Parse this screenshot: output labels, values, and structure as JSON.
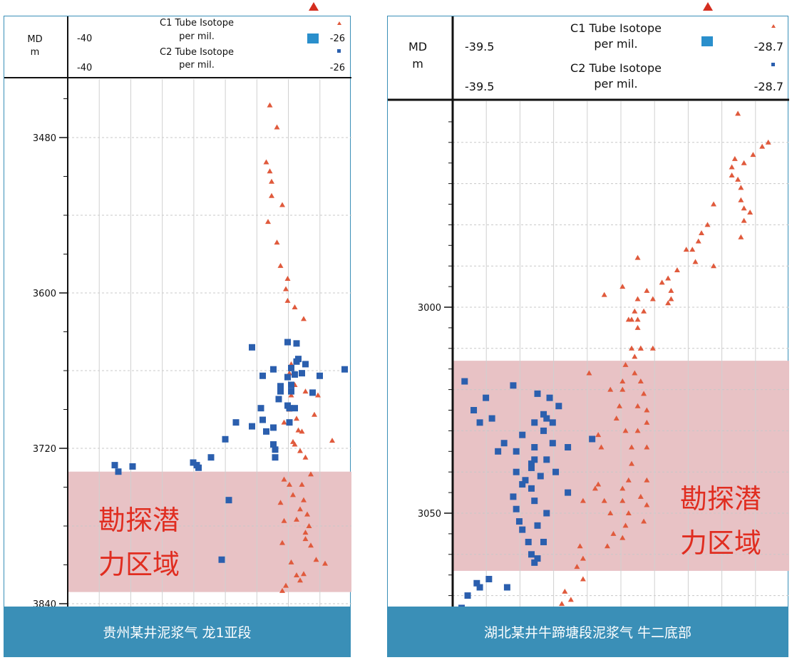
{
  "colors": {
    "c1": "#e05a3c",
    "c2": "#2b5fae",
    "zone": "#e8c2c5",
    "zone_text": "#e02d20",
    "frame": "#3a8fb7",
    "marker": "#d42d1f"
  },
  "icons": {
    "top_marker": "red-triangle-icon"
  },
  "zone_label_line1": "勘探潜",
  "zone_label_line2": "力区域",
  "chart_data": [
    {
      "type": "scatter",
      "footer": "贵州某井泥浆气 龙1亚段",
      "y_axis": {
        "label": "MD",
        "unit": "m",
        "range": [
          3440,
          3844
        ],
        "ticks": [
          "3480",
          "3600",
          "3720",
          "3840"
        ],
        "tick_values": [
          3480,
          3600,
          3720,
          3840
        ]
      },
      "x_axis": {
        "range": [
          -40,
          -26
        ],
        "min_label": "-40",
        "max_label": "-26",
        "unit": "per mil."
      },
      "zone": [
        3738,
        3831
      ],
      "series": [
        {
          "name": "C1 Tube Isotope",
          "marker": "triangle",
          "points": [
            [
              -30.3,
              3455
            ],
            [
              -29.9,
              3472
            ],
            [
              -30.5,
              3499
            ],
            [
              -30.3,
              3506
            ],
            [
              -30.2,
              3514
            ],
            [
              -30.2,
              3525
            ],
            [
              -29.6,
              3532
            ],
            [
              -30.4,
              3545
            ],
            [
              -29.9,
              3561
            ],
            [
              -29.7,
              3579
            ],
            [
              -29.3,
              3589
            ],
            [
              -29.4,
              3597
            ],
            [
              -29.3,
              3606
            ],
            [
              -28.9,
              3611
            ],
            [
              -28.4,
              3620
            ],
            [
              -29.1,
              3655
            ],
            [
              -29.2,
              3662
            ],
            [
              -28.9,
              3671
            ],
            [
              -28.3,
              3676
            ],
            [
              -29.1,
              3679
            ],
            [
              -29.2,
              3690
            ],
            [
              -28.8,
              3697
            ],
            [
              -28.5,
              3707
            ],
            [
              -28.9,
              3717
            ],
            [
              -28.3,
              3727
            ],
            [
              -27.6,
              3679
            ],
            [
              -27.8,
              3694
            ],
            [
              -29.5,
              3700
            ],
            [
              -28.7,
              3706
            ],
            [
              -29.0,
              3715
            ],
            [
              -28.6,
              3722
            ],
            [
              -28.0,
              3740
            ],
            [
              -29.2,
              3748
            ],
            [
              -29.0,
              3756
            ],
            [
              -28.6,
              3767
            ],
            [
              -28.8,
              3775
            ],
            [
              -28.3,
              3785
            ],
            [
              -29.6,
              3793
            ],
            [
              -29.1,
              3808
            ],
            [
              -28.4,
              3817
            ],
            [
              -29.6,
              3830
            ],
            [
              -26.8,
              3714
            ],
            [
              -29.5,
              3744
            ],
            [
              -28.5,
              3748
            ],
            [
              -28.4,
              3760
            ],
            [
              -28.2,
              3771
            ],
            [
              -28.1,
              3780
            ],
            [
              -28.0,
              3795
            ],
            [
              -27.7,
              3806
            ],
            [
              -28.6,
              3822
            ],
            [
              -28.8,
              3818
            ],
            [
              -29.4,
              3826
            ],
            [
              -27.2,
              3809
            ],
            [
              -28.3,
              3790
            ],
            [
              -29.5,
              3776
            ],
            [
              -29.7,
              3762
            ]
          ]
        },
        {
          "name": "C2 Tube Isotope",
          "marker": "square",
          "points": [
            [
              -39.0,
              3733
            ],
            [
              -38.8,
              3738
            ],
            [
              -38.0,
              3734
            ],
            [
              -34.6,
              3731
            ],
            [
              -34.4,
              3733
            ],
            [
              -34.3,
              3735
            ],
            [
              -33.6,
              3727
            ],
            [
              -32.8,
              3713
            ],
            [
              -32.2,
              3700
            ],
            [
              -31.3,
              3703
            ],
            [
              -30.8,
              3689
            ],
            [
              -30.7,
              3698
            ],
            [
              -30.5,
              3707
            ],
            [
              -30.1,
              3704
            ],
            [
              -30.1,
              3717
            ],
            [
              -30.0,
              3721
            ],
            [
              -30.0,
              3727
            ],
            [
              -29.2,
              3689
            ],
            [
              -29.1,
              3671
            ],
            [
              -29.7,
              3676
            ],
            [
              -29.8,
              3682
            ],
            [
              -30.1,
              3659
            ],
            [
              -31.3,
              3642
            ],
            [
              -30.7,
              3664
            ],
            [
              -29.7,
              3672
            ],
            [
              -29.3,
              3665
            ],
            [
              -29.2,
              3700
            ],
            [
              -29.3,
              3687
            ],
            [
              -28.9,
              3689
            ],
            [
              -29.1,
              3676
            ],
            [
              -28.9,
              3663
            ],
            [
              -28.8,
              3653
            ],
            [
              -29.1,
              3658
            ],
            [
              -28.5,
              3662
            ],
            [
              -28.3,
              3655
            ],
            [
              -28.7,
              3651
            ],
            [
              -29.3,
              3638
            ],
            [
              -28.8,
              3639
            ],
            [
              -27.9,
              3677
            ],
            [
              -27.5,
              3664
            ],
            [
              -26.1,
              3659
            ],
            [
              -32.6,
              3760
            ],
            [
              -33.0,
              3806
            ]
          ]
        }
      ]
    },
    {
      "type": "scatter",
      "footer": "湖北某井牛蹄塘段泥浆气 牛二底部",
      "y_axis": {
        "label": "MD",
        "unit": "m",
        "range": [
          2953,
          3074
        ],
        "ticks": [
          "3000",
          "3050"
        ],
        "tick_values": [
          3000,
          3050
        ]
      },
      "x_axis": {
        "range": [
          -39.5,
          -28.7
        ],
        "min_label": "-39.5",
        "max_label": "-28.7",
        "unit": "per mil."
      },
      "zone": [
        3013,
        3064
      ],
      "series": [
        {
          "name": "C1 Tube Isotope",
          "marker": "triangle",
          "points": [
            [
              -30.2,
              2953
            ],
            [
              -29.4,
              2961
            ],
            [
              -29.2,
              2960
            ],
            [
              -29.7,
              2963
            ],
            [
              -30.0,
              2965
            ],
            [
              -30.3,
              2964
            ],
            [
              -30.4,
              2966
            ],
            [
              -30.4,
              2968
            ],
            [
              -30.2,
              2969
            ],
            [
              -30.1,
              2971
            ],
            [
              -30.1,
              2974
            ],
            [
              -30.0,
              2976
            ],
            [
              -30.0,
              2979
            ],
            [
              -29.8,
              2977
            ],
            [
              -30.1,
              2983
            ],
            [
              -31.0,
              2975
            ],
            [
              -31.2,
              2980
            ],
            [
              -31.4,
              2982
            ],
            [
              -31.5,
              2984
            ],
            [
              -31.7,
              2986
            ],
            [
              -31.6,
              2989
            ],
            [
              -31.9,
              2986
            ],
            [
              -32.2,
              2991
            ],
            [
              -32.4,
              2996
            ],
            [
              -32.5,
              2999
            ],
            [
              -31.0,
              2990
            ],
            [
              -32.5,
              2993
            ],
            [
              -32.7,
              2994
            ],
            [
              -32.4,
              2998
            ],
            [
              -33.0,
              2998
            ],
            [
              -33.2,
              2996
            ],
            [
              -33.3,
              3001
            ],
            [
              -33.5,
              3003
            ],
            [
              -33.5,
              3005
            ],
            [
              -33.5,
              2998
            ],
            [
              -33.4,
              3010
            ],
            [
              -34.6,
              2997
            ],
            [
              -34.0,
              2995
            ],
            [
              -33.5,
              2988
            ],
            [
              -33.6,
              3001
            ],
            [
              -33.7,
              3003
            ],
            [
              -33.8,
              3003
            ],
            [
              -33.6,
              3012
            ],
            [
              -33.4,
              3018
            ],
            [
              -33.3,
              3021
            ],
            [
              -33.2,
              3025
            ],
            [
              -33.2,
              3028
            ],
            [
              -33.2,
              3034
            ],
            [
              -33.2,
              3042
            ],
            [
              -33.2,
              3048
            ],
            [
              -33.3,
              3052
            ],
            [
              -33.4,
              3046
            ],
            [
              -34.0,
              3020
            ],
            [
              -33.6,
              3016
            ],
            [
              -33.5,
              3024
            ],
            [
              -33.5,
              3030
            ],
            [
              -33.7,
              3034
            ],
            [
              -33.7,
              3038
            ],
            [
              -33.8,
              3042
            ],
            [
              -33.8,
              3050
            ],
            [
              -33.9,
              3053
            ],
            [
              -34.0,
              3044
            ],
            [
              -34.0,
              3047
            ],
            [
              -34.0,
              3056
            ],
            [
              -34.4,
              3020
            ],
            [
              -34.0,
              3018
            ],
            [
              -34.2,
              3027
            ],
            [
              -33.9,
              3014
            ],
            [
              -33.7,
              3010
            ],
            [
              -33.4,
              3010
            ],
            [
              -33.0,
              3010
            ],
            [
              -33.9,
              3030
            ],
            [
              -34.1,
              3024
            ],
            [
              -34.3,
              3055
            ],
            [
              -34.5,
              3058
            ],
            [
              -34.6,
              3047
            ],
            [
              -34.4,
              3050
            ],
            [
              -34.8,
              3043
            ],
            [
              -34.7,
              3034
            ],
            [
              -35.3,
              3061
            ],
            [
              -35.4,
              3058
            ],
            [
              -35.5,
              3063
            ],
            [
              -35.3,
              3066
            ],
            [
              -35.7,
              3071
            ],
            [
              -35.9,
              3069
            ],
            [
              -36.0,
              3072
            ],
            [
              -35.8,
              3074
            ],
            [
              -34.8,
              3031
            ],
            [
              -35.1,
              3016
            ],
            [
              -34.9,
              3044
            ],
            [
              -35.3,
              3047
            ]
          ]
        },
        {
          "name": "C2 Tube Isotope",
          "marker": "square",
          "points": [
            [
              -39.3,
              3073
            ],
            [
              -39.1,
              3070
            ],
            [
              -38.8,
              3067
            ],
            [
              -38.7,
              3068
            ],
            [
              -38.4,
              3066
            ],
            [
              -37.8,
              3068
            ],
            [
              -39.2,
              3018
            ],
            [
              -38.9,
              3025
            ],
            [
              -38.7,
              3028
            ],
            [
              -38.5,
              3022
            ],
            [
              -38.3,
              3027
            ],
            [
              -38.1,
              3035
            ],
            [
              -37.9,
              3033
            ],
            [
              -37.6,
              3019
            ],
            [
              -37.5,
              3040
            ],
            [
              -37.3,
              3043
            ],
            [
              -37.6,
              3046
            ],
            [
              -37.5,
              3049
            ],
            [
              -37.4,
              3052
            ],
            [
              -37.3,
              3054
            ],
            [
              -37.1,
              3057
            ],
            [
              -37.0,
              3060
            ],
            [
              -36.9,
              3062
            ],
            [
              -36.8,
              3061
            ],
            [
              -36.6,
              3057
            ],
            [
              -36.8,
              3053
            ],
            [
              -36.5,
              3050
            ],
            [
              -36.9,
              3047
            ],
            [
              -37.0,
              3044
            ],
            [
              -37.2,
              3042
            ],
            [
              -37.0,
              3038
            ],
            [
              -36.9,
              3034
            ],
            [
              -36.6,
              3030
            ],
            [
              -36.5,
              3027
            ],
            [
              -36.8,
              3021
            ],
            [
              -36.6,
              3026
            ],
            [
              -36.4,
              3022
            ],
            [
              -36.9,
              3037
            ],
            [
              -37.0,
              3039
            ],
            [
              -36.7,
              3041
            ],
            [
              -36.5,
              3037
            ],
            [
              -36.3,
              3033
            ],
            [
              -36.2,
              3040
            ],
            [
              -35.8,
              3045
            ],
            [
              -35.8,
              3034
            ],
            [
              -35.0,
              3032
            ],
            [
              -36.3,
              3028
            ],
            [
              -36.1,
              3024
            ],
            [
              -36.9,
              3028
            ],
            [
              -37.3,
              3031
            ],
            [
              -37.5,
              3035
            ]
          ]
        }
      ]
    }
  ]
}
